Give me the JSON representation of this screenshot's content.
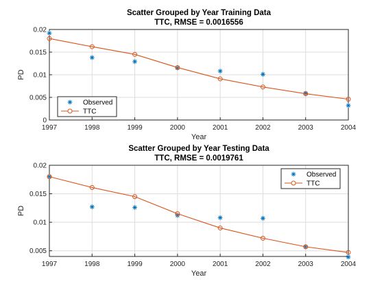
{
  "chart_data": [
    {
      "type": "line",
      "title": "Scatter Grouped by Year Training Data",
      "subtitle": "TTC, RMSE = 0.0016556",
      "xlabel": "Year",
      "ylabel": "PD",
      "xlim": [
        1997,
        2004
      ],
      "ylim": [
        0,
        0.02
      ],
      "xticks": [
        "1997",
        "1998",
        "1999",
        "2000",
        "2001",
        "2002",
        "2003",
        "2004"
      ],
      "yticks": [
        "0",
        "0.005",
        "0.01",
        "0.015",
        "0.02"
      ],
      "grid": true,
      "legend": "bottom-left",
      "series": [
        {
          "name": "Observed",
          "kind": "scatter",
          "marker": "asterisk",
          "color": "#0072bd",
          "x": [
            1997,
            1998,
            1999,
            2000,
            2001,
            2002,
            2003,
            2004
          ],
          "y": [
            0.0192,
            0.0138,
            0.0129,
            0.0115,
            0.0108,
            0.0101,
            0.0059,
            0.0032
          ]
        },
        {
          "name": "TTC",
          "kind": "line",
          "marker": "circle",
          "color": "#d95319",
          "x": [
            1997,
            1998,
            1999,
            2000,
            2001,
            2002,
            2003,
            2004
          ],
          "y": [
            0.018,
            0.0162,
            0.0145,
            0.0116,
            0.0091,
            0.0073,
            0.0058,
            0.0046
          ]
        }
      ]
    },
    {
      "type": "line",
      "title": "Scatter Grouped by Year Testing Data",
      "subtitle": "TTC, RMSE = 0.0019761",
      "xlabel": "Year",
      "ylabel": "PD",
      "xlim": [
        1997,
        2004
      ],
      "ylim": [
        0.004,
        0.02
      ],
      "xticks": [
        "1997",
        "1998",
        "1999",
        "2000",
        "2001",
        "2002",
        "2003",
        "2004"
      ],
      "yticks": [
        "0.005",
        "0.01",
        "0.015",
        "0.02"
      ],
      "grid": true,
      "legend": "top-right",
      "series": [
        {
          "name": "Observed",
          "kind": "scatter",
          "marker": "asterisk",
          "color": "#0072bd",
          "x": [
            1997,
            1998,
            1999,
            2000,
            2001,
            2002,
            2003,
            2004
          ],
          "y": [
            0.018,
            0.0127,
            0.0126,
            0.0112,
            0.0108,
            0.0107,
            0.0057,
            0.0039
          ]
        },
        {
          "name": "TTC",
          "kind": "line",
          "marker": "circle",
          "color": "#d95319",
          "x": [
            1997,
            1998,
            1999,
            2000,
            2001,
            2002,
            2003,
            2004
          ],
          "y": [
            0.018,
            0.0161,
            0.0145,
            0.0115,
            0.009,
            0.0072,
            0.0057,
            0.0047
          ]
        }
      ]
    }
  ]
}
